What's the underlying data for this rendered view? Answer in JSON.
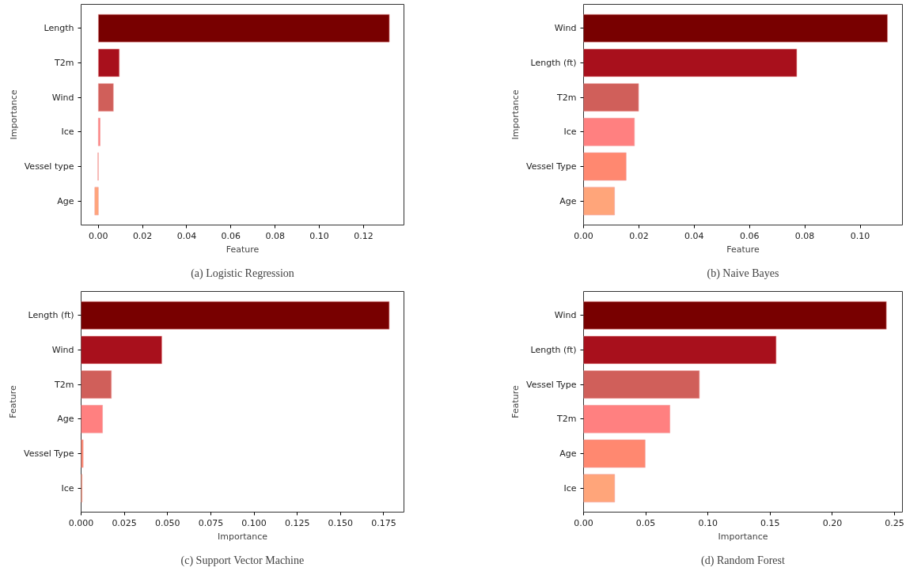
{
  "chart_data": [
    {
      "type": "bar",
      "orientation": "horizontal",
      "title": "(a) Logistic Regression",
      "xlabel": "Feature",
      "ylabel": "Importance",
      "categories": [
        "Length",
        "T2m",
        "Wind",
        "Ice",
        "Vessel type",
        "Age"
      ],
      "values": [
        0.1317,
        0.0095,
        0.0068,
        0.0008,
        -0.0002,
        -0.0016
      ],
      "colors": [
        "#780000",
        "#a8101c",
        "#d05f5a",
        "#ff8080",
        "#ff8870",
        "#ffa57a"
      ],
      "xlim": [
        -0.0078,
        0.1383
      ],
      "xticks": [
        {
          "value": 0,
          "label": "0.00"
        },
        {
          "value": 0.02,
          "label": "0.02"
        },
        {
          "value": 0.04,
          "label": "0.04"
        },
        {
          "value": 0.06,
          "label": "0.06"
        },
        {
          "value": 0.08,
          "label": "0.08"
        },
        {
          "value": 0.1,
          "label": "0.10"
        },
        {
          "value": 0.12,
          "label": "0.12"
        }
      ],
      "grid": false
    },
    {
      "type": "bar",
      "orientation": "horizontal",
      "title": "(b) Naive Bayes",
      "xlabel": "Feature",
      "ylabel": "Importance",
      "categories": [
        "Wind",
        "Length (ft)",
        "T2m",
        "Ice",
        "Vessel Type",
        "Age"
      ],
      "values": [
        0.1099,
        0.0771,
        0.0199,
        0.0184,
        0.0154,
        0.0112
      ],
      "colors": [
        "#780000",
        "#a8101c",
        "#d05f5a",
        "#ff8080",
        "#ff8870",
        "#ffa57a"
      ],
      "xlim": [
        0,
        0.1153
      ],
      "xticks": [
        {
          "value": 0,
          "label": "0.00"
        },
        {
          "value": 0.02,
          "label": "0.02"
        },
        {
          "value": 0.04,
          "label": "0.04"
        },
        {
          "value": 0.06,
          "label": "0.06"
        },
        {
          "value": 0.08,
          "label": "0.08"
        },
        {
          "value": 0.1,
          "label": "0.10"
        }
      ],
      "grid": false
    },
    {
      "type": "bar",
      "orientation": "horizontal",
      "title": "(c) Support Vector Machine",
      "xlabel": "Importance",
      "ylabel": "Feature",
      "categories": [
        "Length (ft)",
        "Wind",
        "T2m",
        "Age",
        "Vessel Type",
        "Ice"
      ],
      "values": [
        0.1782,
        0.0467,
        0.0175,
        0.0124,
        0.0012,
        0.0006
      ],
      "colors": [
        "#780000",
        "#a8101c",
        "#d05f5a",
        "#ff8080",
        "#ff8870",
        "#ffa57a"
      ],
      "xlim": [
        0,
        0.1867
      ],
      "xticks": [
        {
          "value": 0,
          "label": "0.000"
        },
        {
          "value": 0.025,
          "label": "0.025"
        },
        {
          "value": 0.05,
          "label": "0.050"
        },
        {
          "value": 0.075,
          "label": "0.075"
        },
        {
          "value": 0.1,
          "label": "0.100"
        },
        {
          "value": 0.125,
          "label": "0.125"
        },
        {
          "value": 0.15,
          "label": "0.150"
        },
        {
          "value": 0.175,
          "label": "0.175"
        }
      ],
      "grid": false
    },
    {
      "type": "bar",
      "orientation": "horizontal",
      "title": "(d) Random Forest",
      "xlabel": "Importance",
      "ylabel": "Feature",
      "categories": [
        "Wind",
        "Length (ft)",
        "Vessel Type",
        "T2m",
        "Age",
        "Ice"
      ],
      "values": [
        0.2434,
        0.1548,
        0.0931,
        0.0694,
        0.0495,
        0.025
      ],
      "colors": [
        "#780000",
        "#a8101c",
        "#d05f5a",
        "#ff8080",
        "#ff8870",
        "#ffa57a"
      ],
      "xlim": [
        0,
        0.2563
      ],
      "xticks": [
        {
          "value": 0,
          "label": "0.00"
        },
        {
          "value": 0.05,
          "label": "0.05"
        },
        {
          "value": 0.1,
          "label": "0.10"
        },
        {
          "value": 0.15,
          "label": "0.15"
        },
        {
          "value": 0.2,
          "label": "0.20"
        },
        {
          "value": 0.25,
          "label": "0.25"
        }
      ],
      "grid": false
    }
  ]
}
